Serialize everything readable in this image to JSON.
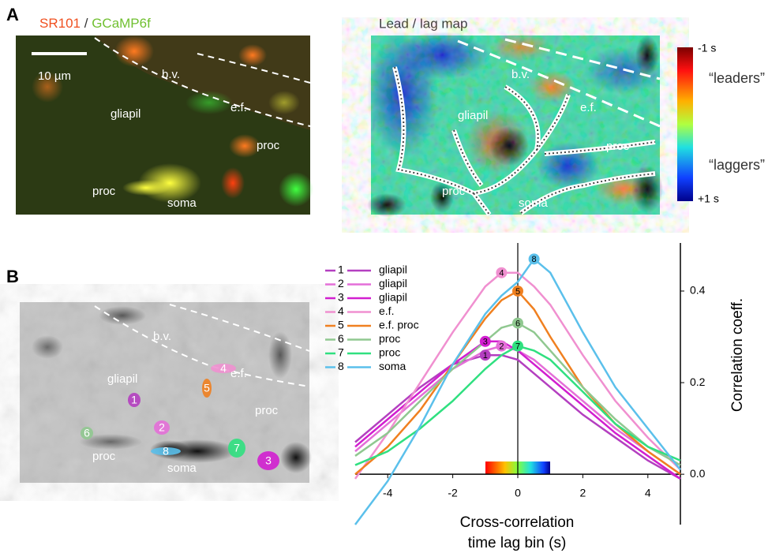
{
  "panel_a": {
    "letter": "A",
    "title_red": "SR101",
    "title_sep": "/",
    "title_green": "GCaMP6f",
    "scale_bar": "10 µm",
    "labels": [
      "b.v.",
      "e.f.",
      "gliapil",
      "proc",
      "proc",
      "soma"
    ]
  },
  "map": {
    "title": "Lead / lag map",
    "labels": [
      "b.v.",
      "e.f.",
      "gliapil",
      "proc",
      "proc",
      "soma"
    ],
    "colorbar": {
      "top": "-1 s",
      "bottom": "+1 s",
      "top_note": "“leaders”",
      "bottom_note": "“laggers”"
    }
  },
  "panel_b": {
    "letter": "B",
    "labels": [
      "b.v.",
      "e.f.",
      "gliapil",
      "proc",
      "proc",
      "soma"
    ]
  },
  "chart_data": {
    "type": "line",
    "x_label_lines": [
      "Cross-correlation",
      "time lag bin (s)"
    ],
    "y_label": "Correlation coeff.",
    "x": [
      -5,
      -4,
      -3,
      -2,
      -1,
      -0.5,
      0,
      0.5,
      1,
      2,
      3,
      4,
      5
    ],
    "xlim": [
      -5,
      5
    ],
    "xticks": [
      -4,
      -2,
      0,
      2,
      4
    ],
    "ylim": [
      -0.11,
      0.505
    ],
    "yticks": [
      {
        "value": 0,
        "label": "0.0"
      },
      {
        "value": 0.2,
        "label": "0.2"
      },
      {
        "value": 0.4,
        "label": "0.4"
      }
    ],
    "series": [
      {
        "id": "1",
        "name": "gliapil",
        "color": "#b43fc0",
        "values": [
          0.07,
          0.13,
          0.19,
          0.24,
          0.26,
          0.26,
          0.25,
          0.22,
          0.19,
          0.13,
          0.08,
          0.03,
          -0.01
        ]
      },
      {
        "id": "2",
        "name": "gliapil",
        "color": "#e46fd8",
        "values": [
          0.05,
          0.11,
          0.17,
          0.23,
          0.27,
          0.28,
          0.27,
          0.25,
          0.22,
          0.16,
          0.1,
          0.05,
          0.0
        ]
      },
      {
        "id": "3",
        "name": "gliapil",
        "color": "#d21fd0",
        "values": [
          0.06,
          0.12,
          0.18,
          0.24,
          0.29,
          0.29,
          0.27,
          0.24,
          0.21,
          0.15,
          0.09,
          0.04,
          -0.01
        ]
      },
      {
        "id": "4",
        "name": "e.f.",
        "color": "#f090d0",
        "values": [
          -0.01,
          0.09,
          0.2,
          0.31,
          0.41,
          0.44,
          0.44,
          0.41,
          0.37,
          0.26,
          0.16,
          0.08,
          0.01
        ]
      },
      {
        "id": "5",
        "name": "e.f. proc",
        "color": "#f08020",
        "values": [
          0.0,
          0.06,
          0.14,
          0.24,
          0.34,
          0.38,
          0.4,
          0.36,
          0.3,
          0.19,
          0.11,
          0.05,
          0.0
        ]
      },
      {
        "id": "6",
        "name": "proc",
        "color": "#90c890",
        "values": [
          0.04,
          0.09,
          0.16,
          0.23,
          0.29,
          0.32,
          0.33,
          0.31,
          0.27,
          0.19,
          0.12,
          0.06,
          0.02
        ]
      },
      {
        "id": "7",
        "name": "proc",
        "color": "#30e080",
        "values": [
          0.02,
          0.05,
          0.1,
          0.16,
          0.23,
          0.26,
          0.28,
          0.27,
          0.25,
          0.18,
          0.11,
          0.06,
          0.03
        ]
      },
      {
        "id": "8",
        "name": "soma",
        "color": "#5bc0eb",
        "values": [
          -0.11,
          -0.015,
          0.105,
          0.24,
          0.35,
          0.39,
          0.42,
          0.47,
          0.44,
          0.31,
          0.19,
          0.1,
          0.01
        ]
      }
    ]
  }
}
